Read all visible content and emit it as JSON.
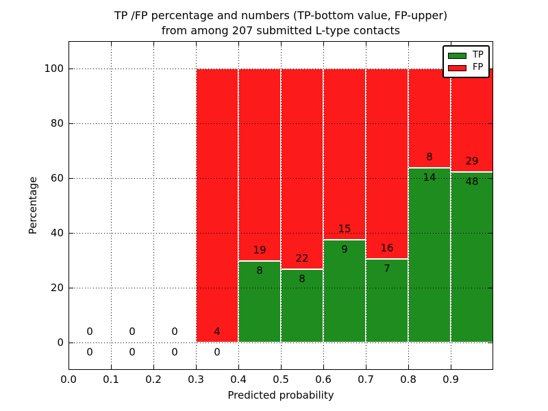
{
  "title": {
    "line1": "TP /FP percentage and numbers (TP-bottom value, FP-upper)",
    "line2": "from among 207 submitted L-type contacts"
  },
  "chart_data": {
    "type": "bar",
    "stacked": true,
    "title": "TP /FP percentage and numbers (TP-bottom value, FP-upper) from among 207 submitted L-type contacts",
    "total_contacts": 207,
    "xlabel": "Predicted probability",
    "ylabel": "Percentage",
    "bin_edges": [
      0.0,
      0.1,
      0.2,
      0.3,
      0.4,
      0.5,
      0.6,
      0.7,
      0.8,
      0.9,
      1.0
    ],
    "xtick_labels": [
      "0.0",
      "0.1",
      "0.2",
      "0.3",
      "0.4",
      "0.5",
      "0.6",
      "0.7",
      "0.8",
      "0.9"
    ],
    "yticks": [
      0,
      20,
      40,
      60,
      80,
      100
    ],
    "xlim": [
      0.0,
      1.0
    ],
    "ylim": [
      -10,
      110
    ],
    "grid": true,
    "legend_position": "upper right",
    "series": [
      {
        "name": "TP",
        "color": "#1f8c1f",
        "counts": [
          0,
          0,
          0,
          0,
          8,
          8,
          9,
          7,
          14,
          48
        ],
        "percent": [
          0,
          0,
          0,
          0,
          29.63,
          26.67,
          37.5,
          30.43,
          63.64,
          62.34
        ]
      },
      {
        "name": "FP",
        "color": "#fc1a1a",
        "counts": [
          0,
          0,
          0,
          4,
          19,
          22,
          15,
          16,
          8,
          29
        ],
        "percent": [
          0,
          0,
          0,
          100,
          70.37,
          73.33,
          62.5,
          69.57,
          36.36,
          37.66
        ]
      }
    ]
  }
}
